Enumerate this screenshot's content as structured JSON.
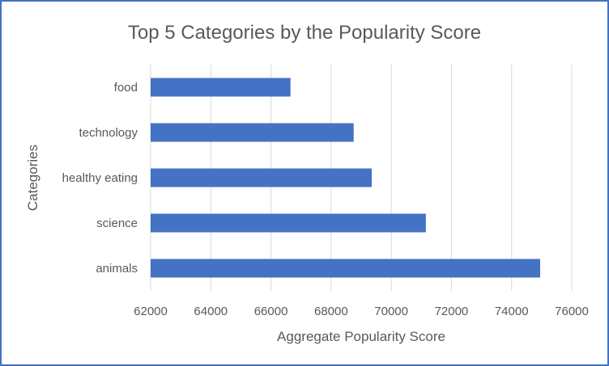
{
  "chart_data": {
    "type": "bar",
    "orientation": "horizontal",
    "title": "Top 5 Categories by the Popularity Score",
    "xlabel": "Aggregate Popularity Score",
    "ylabel": "Categories",
    "categories": [
      "food",
      "technology",
      "healthy eating",
      "science",
      "animals"
    ],
    "values": [
      66650,
      68750,
      69350,
      71150,
      74950
    ],
    "xlim": [
      62000,
      76000
    ],
    "xticks": [
      "62000",
      "64000",
      "66000",
      "68000",
      "70000",
      "72000",
      "74000",
      "76000"
    ],
    "grid": "vertical",
    "legend": "none",
    "bar_color": "#4472c4",
    "grid_color": "#d9d9d9",
    "frame_color": "#4472c4"
  }
}
